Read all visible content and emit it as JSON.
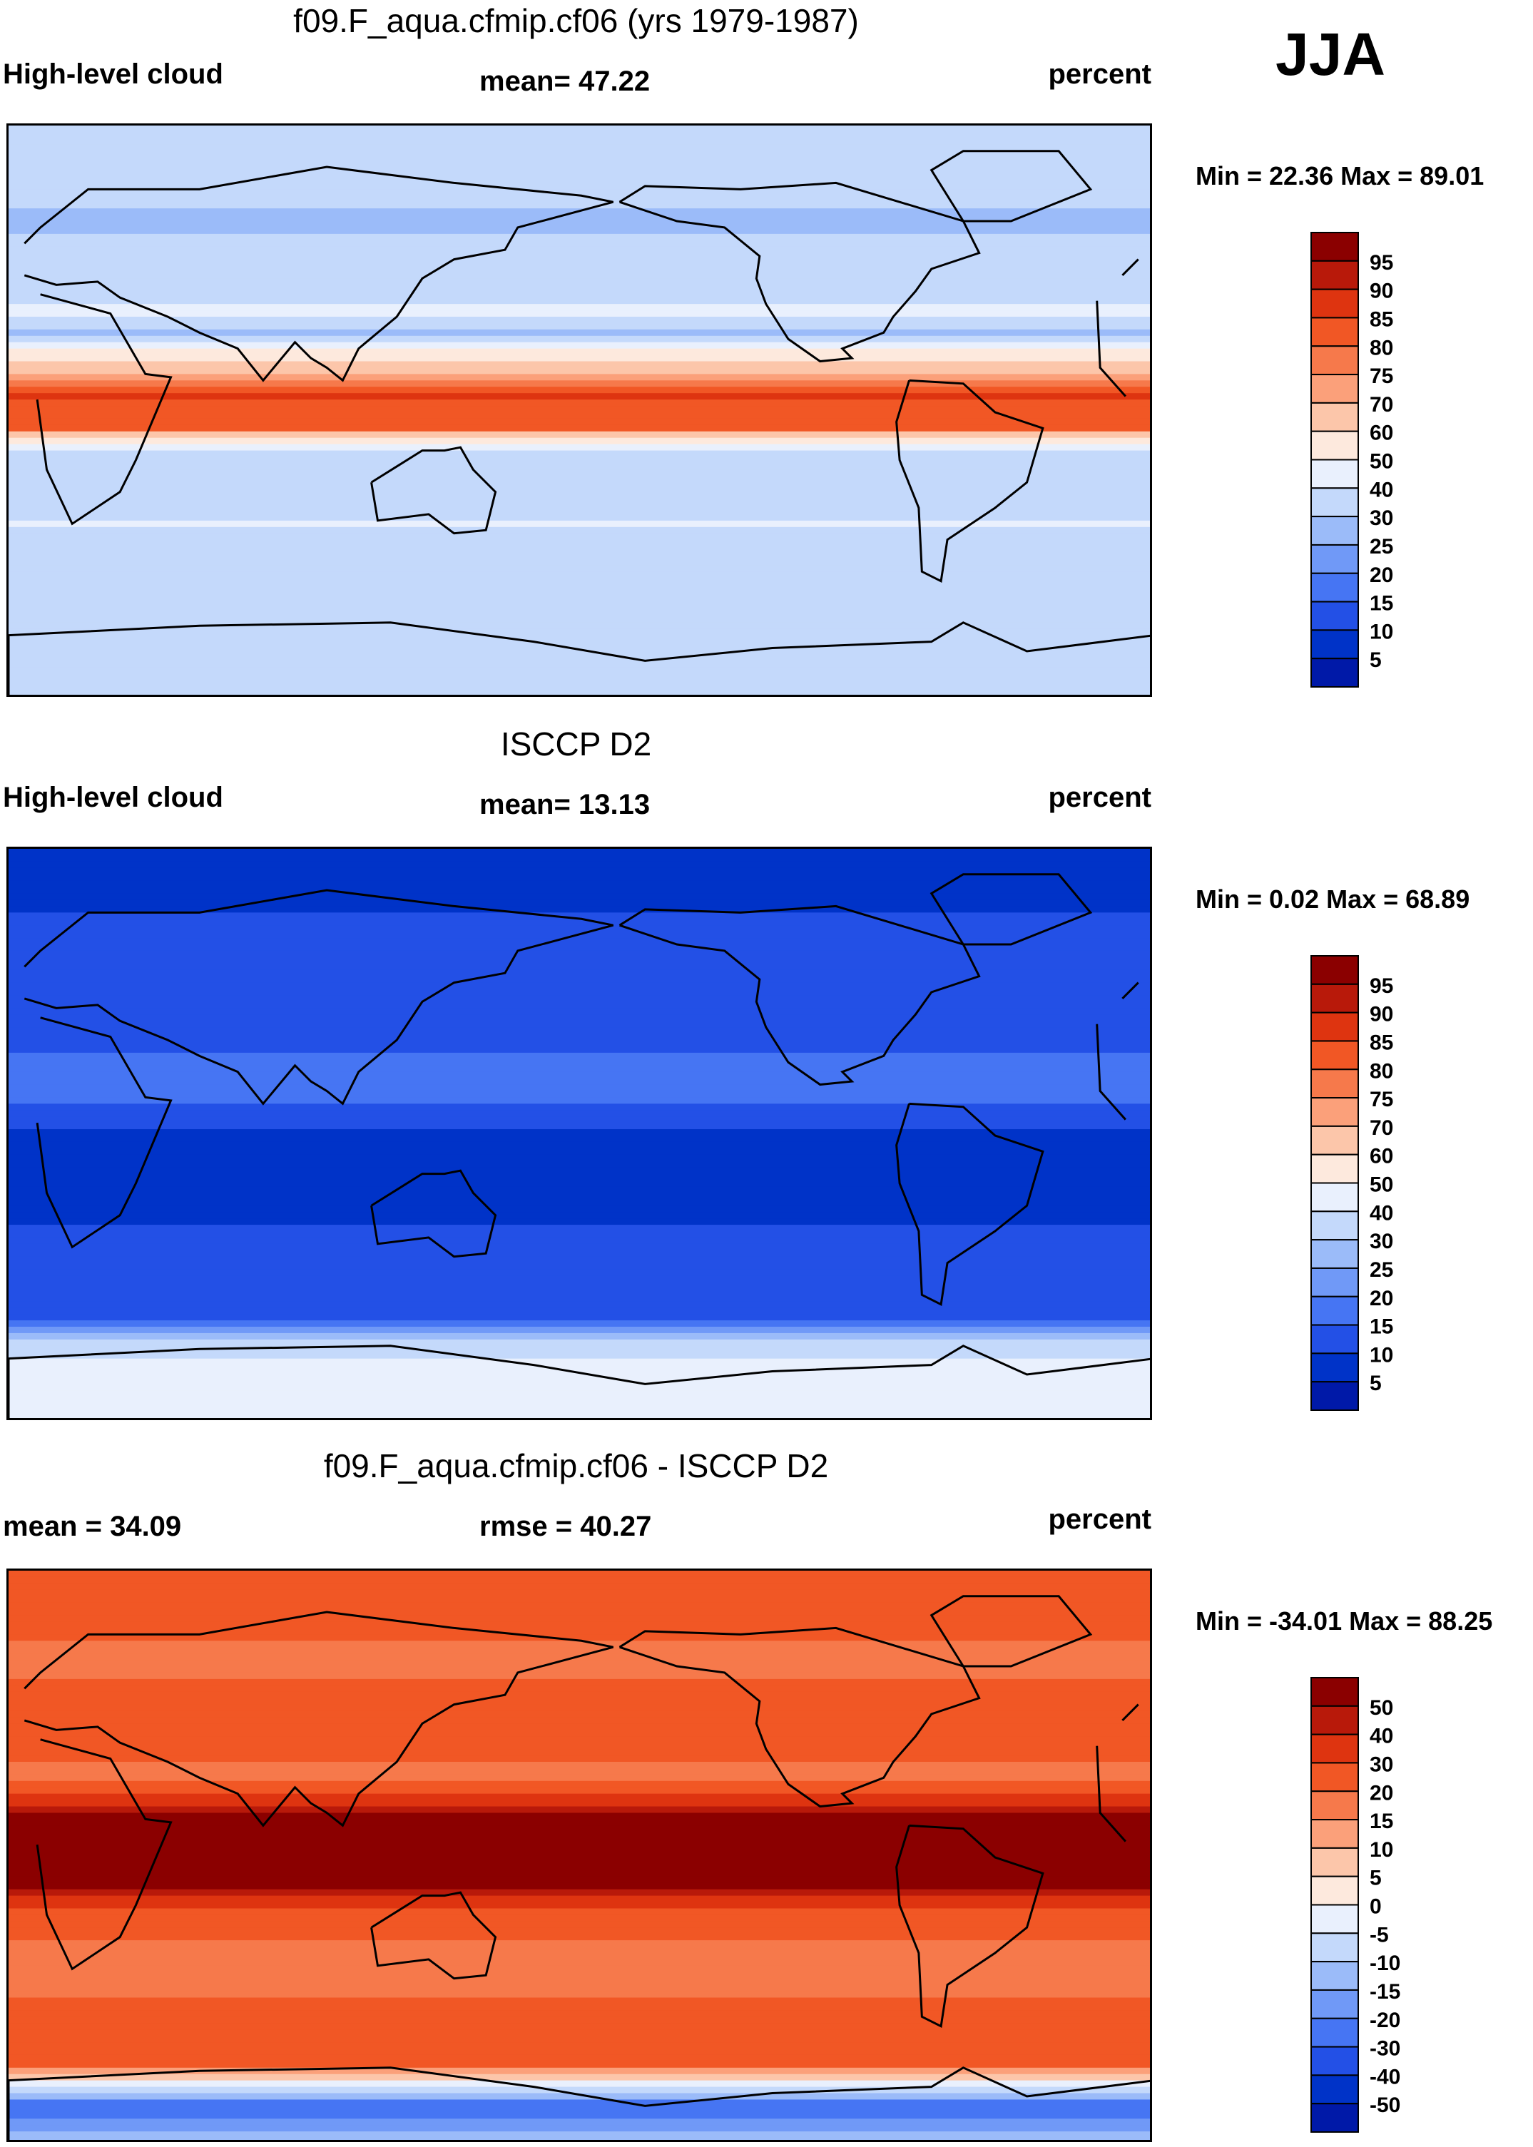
{
  "season": "JJA",
  "colors": {
    "cloud_scale": [
      "#00007f",
      "#0019a8",
      "#0033c8",
      "#2350e6",
      "#4675f3",
      "#7099f7",
      "#9bbbf9",
      "#c4d9fb",
      "#e9f0fd",
      "#fde9dd",
      "#fcc6aa",
      "#fba07a",
      "#f6794b",
      "#f15725",
      "#de3410",
      "#b8190a",
      "#8b0000"
    ],
    "diff_scale": [
      "#00007f",
      "#0019a8",
      "#0033c8",
      "#2350e6",
      "#4675f3",
      "#7099f7",
      "#9bbbf9",
      "#c4d9fb",
      "#e9f0fd",
      "#fde9dd",
      "#fcc6aa",
      "#fba07a",
      "#f6794b",
      "#f15725",
      "#de3410",
      "#b8190a",
      "#8b0000"
    ]
  },
  "chart_data": [
    {
      "type": "heatmap",
      "title": "f09.F_aqua.cfmip.cf06 (yrs 1979-1987)",
      "left_label": "High-level cloud",
      "center_label": "mean=  47.22",
      "units": "percent",
      "min_label": "Min =  22.36 Max =  89.01",
      "min": 22.36,
      "max": 89.01,
      "mean": 47.22,
      "levels": [
        "95",
        "90",
        "85",
        "80",
        "75",
        "70",
        "60",
        "50",
        "40",
        "30",
        "25",
        "20",
        "15",
        "10",
        "5"
      ],
      "zonal_profile": [
        {
          "lat": 90,
          "value": 30
        },
        {
          "lat": 70,
          "value": 33
        },
        {
          "lat": 60,
          "value": 28
        },
        {
          "lat": 45,
          "value": 36
        },
        {
          "lat": 30,
          "value": 41
        },
        {
          "lat": 25,
          "value": 28
        },
        {
          "lat": 15,
          "value": 65
        },
        {
          "lat": 5,
          "value": 85
        },
        {
          "lat": -5,
          "value": 80
        },
        {
          "lat": -12,
          "value": 38
        },
        {
          "lat": -20,
          "value": 30
        },
        {
          "lat": -35,
          "value": 40
        },
        {
          "lat": -50,
          "value": 30
        },
        {
          "lat": -65,
          "value": 33
        },
        {
          "lat": -90,
          "value": 35
        }
      ]
    },
    {
      "type": "heatmap",
      "title": "ISCCP D2",
      "left_label": "High-level cloud",
      "center_label": "mean=  13.13",
      "units": "percent",
      "min_label": "Min =   0.02 Max =  68.89",
      "min": 0.02,
      "max": 68.89,
      "mean": 13.13,
      "levels": [
        "95",
        "90",
        "85",
        "80",
        "75",
        "70",
        "60",
        "50",
        "40",
        "30",
        "25",
        "20",
        "15",
        "10",
        "5"
      ],
      "zonal_profile": [
        {
          "lat": 90,
          "value": 6
        },
        {
          "lat": 60,
          "value": 12
        },
        {
          "lat": 30,
          "value": 12
        },
        {
          "lat": 20,
          "value": 18
        },
        {
          "lat": 10,
          "value": 15
        },
        {
          "lat": 0,
          "value": 9
        },
        {
          "lat": -15,
          "value": 5
        },
        {
          "lat": -35,
          "value": 13
        },
        {
          "lat": -55,
          "value": 11
        },
        {
          "lat": -70,
          "value": 40
        },
        {
          "lat": -90,
          "value": 48
        }
      ]
    },
    {
      "type": "heatmap",
      "title": "f09.F_aqua.cfmip.cf06 - ISCCP D2",
      "left_label": "mean =  34.09",
      "center_label": "rmse =  40.27",
      "units": "percent",
      "min_label": "Min = -34.01 Max =  88.25",
      "min": -34.01,
      "max": 88.25,
      "mean": 34.09,
      "rmse": 40.27,
      "levels": [
        "50",
        "40",
        "30",
        "20",
        "15",
        "10",
        "5",
        "0",
        "-5",
        "-10",
        "-15",
        "-20",
        "-30",
        "-40",
        "-50"
      ],
      "zonal_profile": [
        {
          "lat": 90,
          "value": 25
        },
        {
          "lat": 60,
          "value": 18
        },
        {
          "lat": 40,
          "value": 28
        },
        {
          "lat": 25,
          "value": 16
        },
        {
          "lat": 15,
          "value": 45
        },
        {
          "lat": 5,
          "value": 70
        },
        {
          "lat": -5,
          "value": 75
        },
        {
          "lat": -15,
          "value": 30
        },
        {
          "lat": -30,
          "value": 15
        },
        {
          "lat": -50,
          "value": 22
        },
        {
          "lat": -65,
          "value": 20
        },
        {
          "lat": -78,
          "value": -25
        },
        {
          "lat": -90,
          "value": -10
        }
      ]
    }
  ]
}
